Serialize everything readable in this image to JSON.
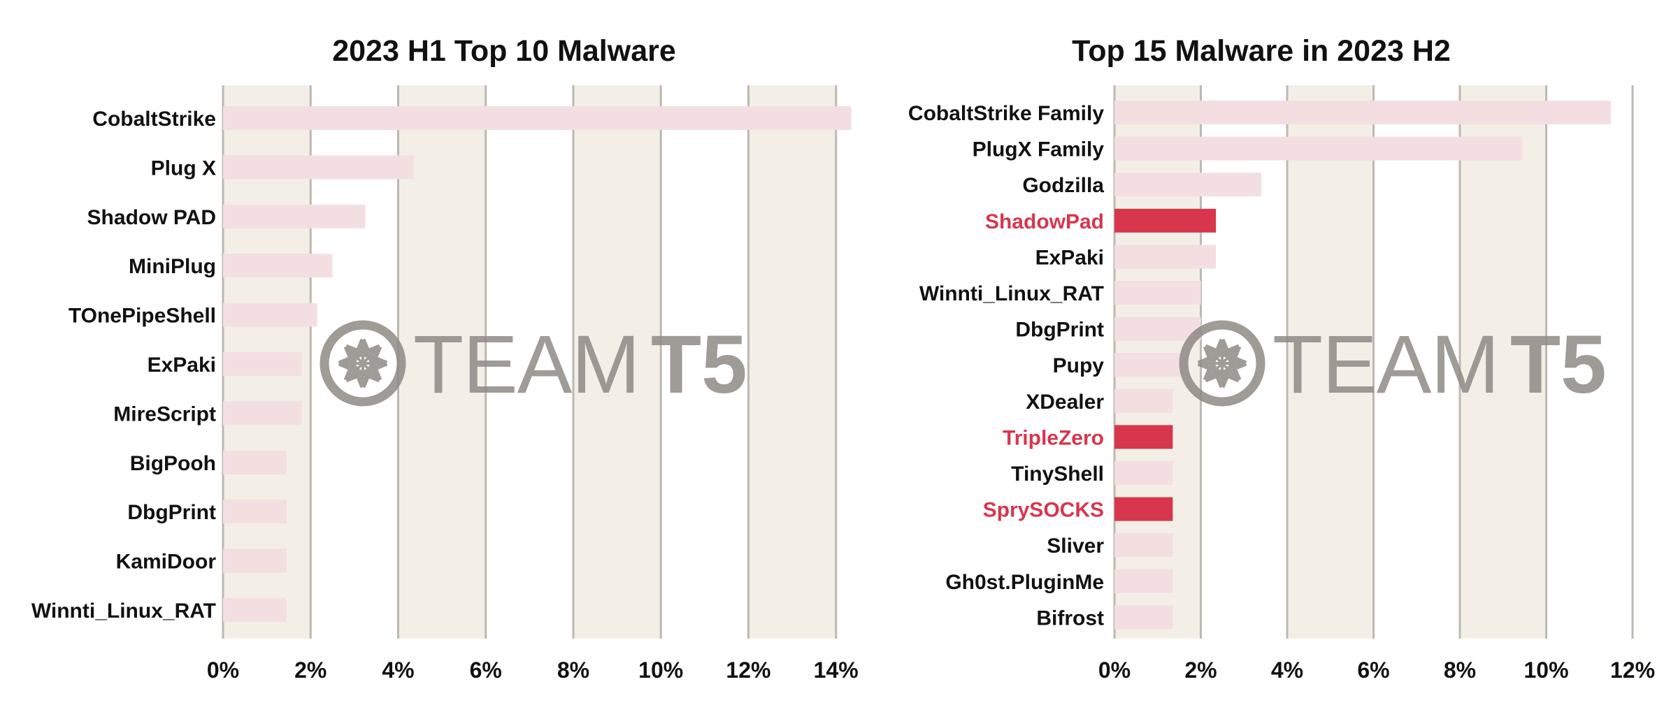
{
  "watermark": {
    "text_light": "TEAM",
    "text_bold": "T5",
    "logo": "teamt5-network-logo",
    "color": "#8f8a86"
  },
  "colors": {
    "band": "#f3efe6",
    "grid": "#bdb8b2",
    "bar": "#f3dfe2",
    "highlight": "#d7364d",
    "text": "#111111"
  },
  "chart_data": [
    {
      "type": "bar",
      "orientation": "horizontal",
      "title": "2023 H1 Top 10 Malware",
      "xlim": [
        0,
        14.5
      ],
      "ticks": [
        0,
        2,
        4,
        6,
        8,
        10,
        12,
        14
      ],
      "tick_labels": [
        "0%",
        "2%",
        "4%",
        "6%",
        "8%",
        "10%",
        "12%",
        "14%"
      ],
      "grid": true,
      "legend": "none",
      "categories": [
        "CobaltStrike",
        "Plug X",
        "Shadow PAD",
        "MiniPlug",
        "TOnePipeShell",
        "ExPaki",
        "MireScript",
        "BigPooh",
        "DbgPrint",
        "KamiDoor",
        "Winnti_Linux_RAT"
      ],
      "values": [
        14.35,
        4.35,
        3.25,
        2.5,
        2.15,
        1.8,
        1.8,
        1.45,
        1.45,
        1.45,
        1.45
      ],
      "highlighted": []
    },
    {
      "type": "bar",
      "orientation": "horizontal",
      "title": "Top 15 Malware in 2023 H2",
      "xlim": [
        0,
        12
      ],
      "ticks": [
        0,
        2,
        4,
        6,
        8,
        10,
        12
      ],
      "tick_labels": [
        "0%",
        "2%",
        "4%",
        "6%",
        "8%",
        "10%",
        "12%"
      ],
      "grid": true,
      "legend": "none",
      "categories": [
        "CobaltStrike Family",
        "PlugX Family",
        "Godzilla",
        "ShadowPad",
        "ExPaki",
        "Winnti_Linux_RAT",
        "DbgPrint",
        "Pupy",
        "XDealer",
        "TripleZero",
        "TinyShell",
        "SprySOCKS",
        "Sliver",
        "Gh0st.PluginMe",
        "Bifrost"
      ],
      "values": [
        11.5,
        9.45,
        3.4,
        2.35,
        2.35,
        2.0,
        2.0,
        1.7,
        1.35,
        1.35,
        1.35,
        1.35,
        1.35,
        1.35,
        1.35
      ],
      "highlighted": [
        "ShadowPad",
        "TripleZero",
        "SprySOCKS"
      ]
    }
  ]
}
